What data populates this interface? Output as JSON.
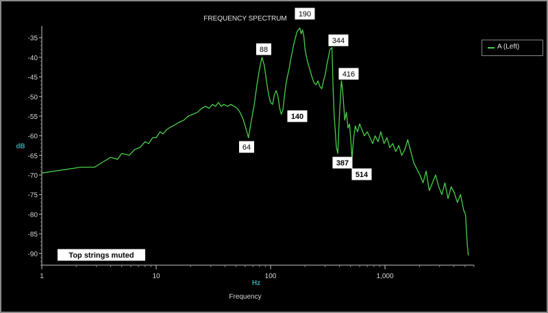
{
  "chart_data": {
    "type": "line",
    "title": "FREQUENCY SPECTRUM",
    "xlabel": "Frequency",
    "x_unit": "Hz",
    "ylabel": "dB",
    "x_scale": "log",
    "xlim": [
      1,
      6000
    ],
    "ylim": [
      -93,
      -32
    ],
    "x_ticks": [
      "1",
      "10",
      "100",
      "1,000"
    ],
    "y_ticks": [
      "-35",
      "-40",
      "-45",
      "-50",
      "-55",
      "-60",
      "-65",
      "-70",
      "-75",
      "-80",
      "-85",
      "-90"
    ],
    "legend_position": "top-right",
    "series": [
      {
        "name": "A (Left)",
        "color": "#4bd34b",
        "x": [
          1,
          2.2,
          2.9,
          3.5,
          4,
          4.6,
          5,
          5.8,
          6.5,
          7.2,
          8,
          8.6,
          9.3,
          10,
          10.8,
          11.5,
          12.3,
          13,
          14,
          15,
          16,
          17.5,
          19,
          21,
          23,
          25,
          27,
          29,
          31,
          33,
          35,
          37,
          39,
          42,
          45,
          48,
          51,
          54,
          57,
          60,
          64,
          68,
          72,
          76,
          80,
          84,
          88,
          92,
          96,
          100,
          104,
          108,
          112,
          116,
          120,
          124,
          128,
          132,
          136,
          140,
          145,
          150,
          155,
          160,
          165,
          170,
          175,
          180,
          185,
          190,
          195,
          200,
          210,
          220,
          230,
          240,
          250,
          260,
          270,
          280,
          290,
          300,
          310,
          320,
          330,
          344,
          352,
          360,
          368,
          376,
          387,
          395,
          403,
          410,
          416,
          425,
          435,
          445,
          460,
          475,
          490,
          505,
          514,
          530,
          550,
          575,
          600,
          630,
          660,
          700,
          740,
          780,
          820,
          870,
          920,
          980,
          1040,
          1100,
          1170,
          1240,
          1320,
          1400,
          1490,
          1580,
          1680,
          1790,
          1900,
          2020,
          2150,
          2290,
          2440,
          2600,
          2770,
          2950,
          3140,
          3340,
          3560,
          3790,
          4030,
          4290,
          4570,
          4870,
          5050,
          5150,
          5250,
          5350
        ],
        "values": [
          -69.5,
          -68,
          -68,
          -66.5,
          -65.5,
          -66,
          -64.5,
          -65,
          -63.5,
          -63,
          -61.5,
          -62,
          -60.5,
          -60.5,
          -59,
          -59.5,
          -58.5,
          -58,
          -57.5,
          -57,
          -56.5,
          -56,
          -55,
          -54.5,
          -54,
          -53,
          -52.5,
          -53,
          -52,
          -52.5,
          -51.5,
          -52.5,
          -52,
          -52.5,
          -52,
          -52.5,
          -53,
          -54,
          -55.5,
          -57.5,
          -60.5,
          -56,
          -52,
          -47,
          -43,
          -40,
          -42,
          -46,
          -49.5,
          -51.5,
          -52,
          -49.5,
          -48.5,
          -50,
          -53,
          -54.5,
          -53.5,
          -50,
          -47,
          -45,
          -43,
          -40.5,
          -38.5,
          -36.5,
          -35,
          -33.5,
          -33,
          -32.5,
          -34,
          -33,
          -34.5,
          -38,
          -41,
          -43,
          -45,
          -46.5,
          -47,
          -46,
          -47.5,
          -48,
          -46,
          -44.5,
          -42,
          -40,
          -38,
          -37.5,
          -48,
          -55,
          -59,
          -63,
          -64.5,
          -58,
          -53,
          -49,
          -46,
          -48,
          -52,
          -56,
          -54,
          -58,
          -57,
          -62,
          -66,
          -61,
          -57.5,
          -59,
          -57,
          -58.5,
          -60,
          -59,
          -60.5,
          -62,
          -60,
          -61.5,
          -59,
          -62,
          -60.5,
          -63,
          -62,
          -64,
          -62.5,
          -65,
          -63.5,
          -61,
          -64,
          -67,
          -68.5,
          -70,
          -72,
          -69,
          -74,
          -72,
          -70,
          -73,
          -75,
          -72,
          -76,
          -73,
          -74.5,
          -77,
          -75,
          -79,
          -80,
          -84,
          -88,
          -90.5
        ]
      }
    ],
    "annotations": [
      {
        "text": "88",
        "x": 88,
        "y": -40,
        "bold": false
      },
      {
        "text": "190",
        "x": 190,
        "y": -32.5,
        "bold": false
      },
      {
        "text": "344",
        "x": 344,
        "y": -37.5,
        "bold": false
      },
      {
        "text": "416",
        "x": 416,
        "y": -46,
        "bold": false
      },
      {
        "text": "140",
        "x": 140,
        "y": -45,
        "bold": true
      },
      {
        "text": "64",
        "x": 64,
        "y": -60.5,
        "bold": false
      },
      {
        "text": "387",
        "x": 387,
        "y": -64.5,
        "bold": true
      },
      {
        "text": "514",
        "x": 514,
        "y": -66,
        "bold": true
      },
      {
        "text": "Top strings muted",
        "x": null,
        "y": null,
        "bold": true
      }
    ]
  }
}
